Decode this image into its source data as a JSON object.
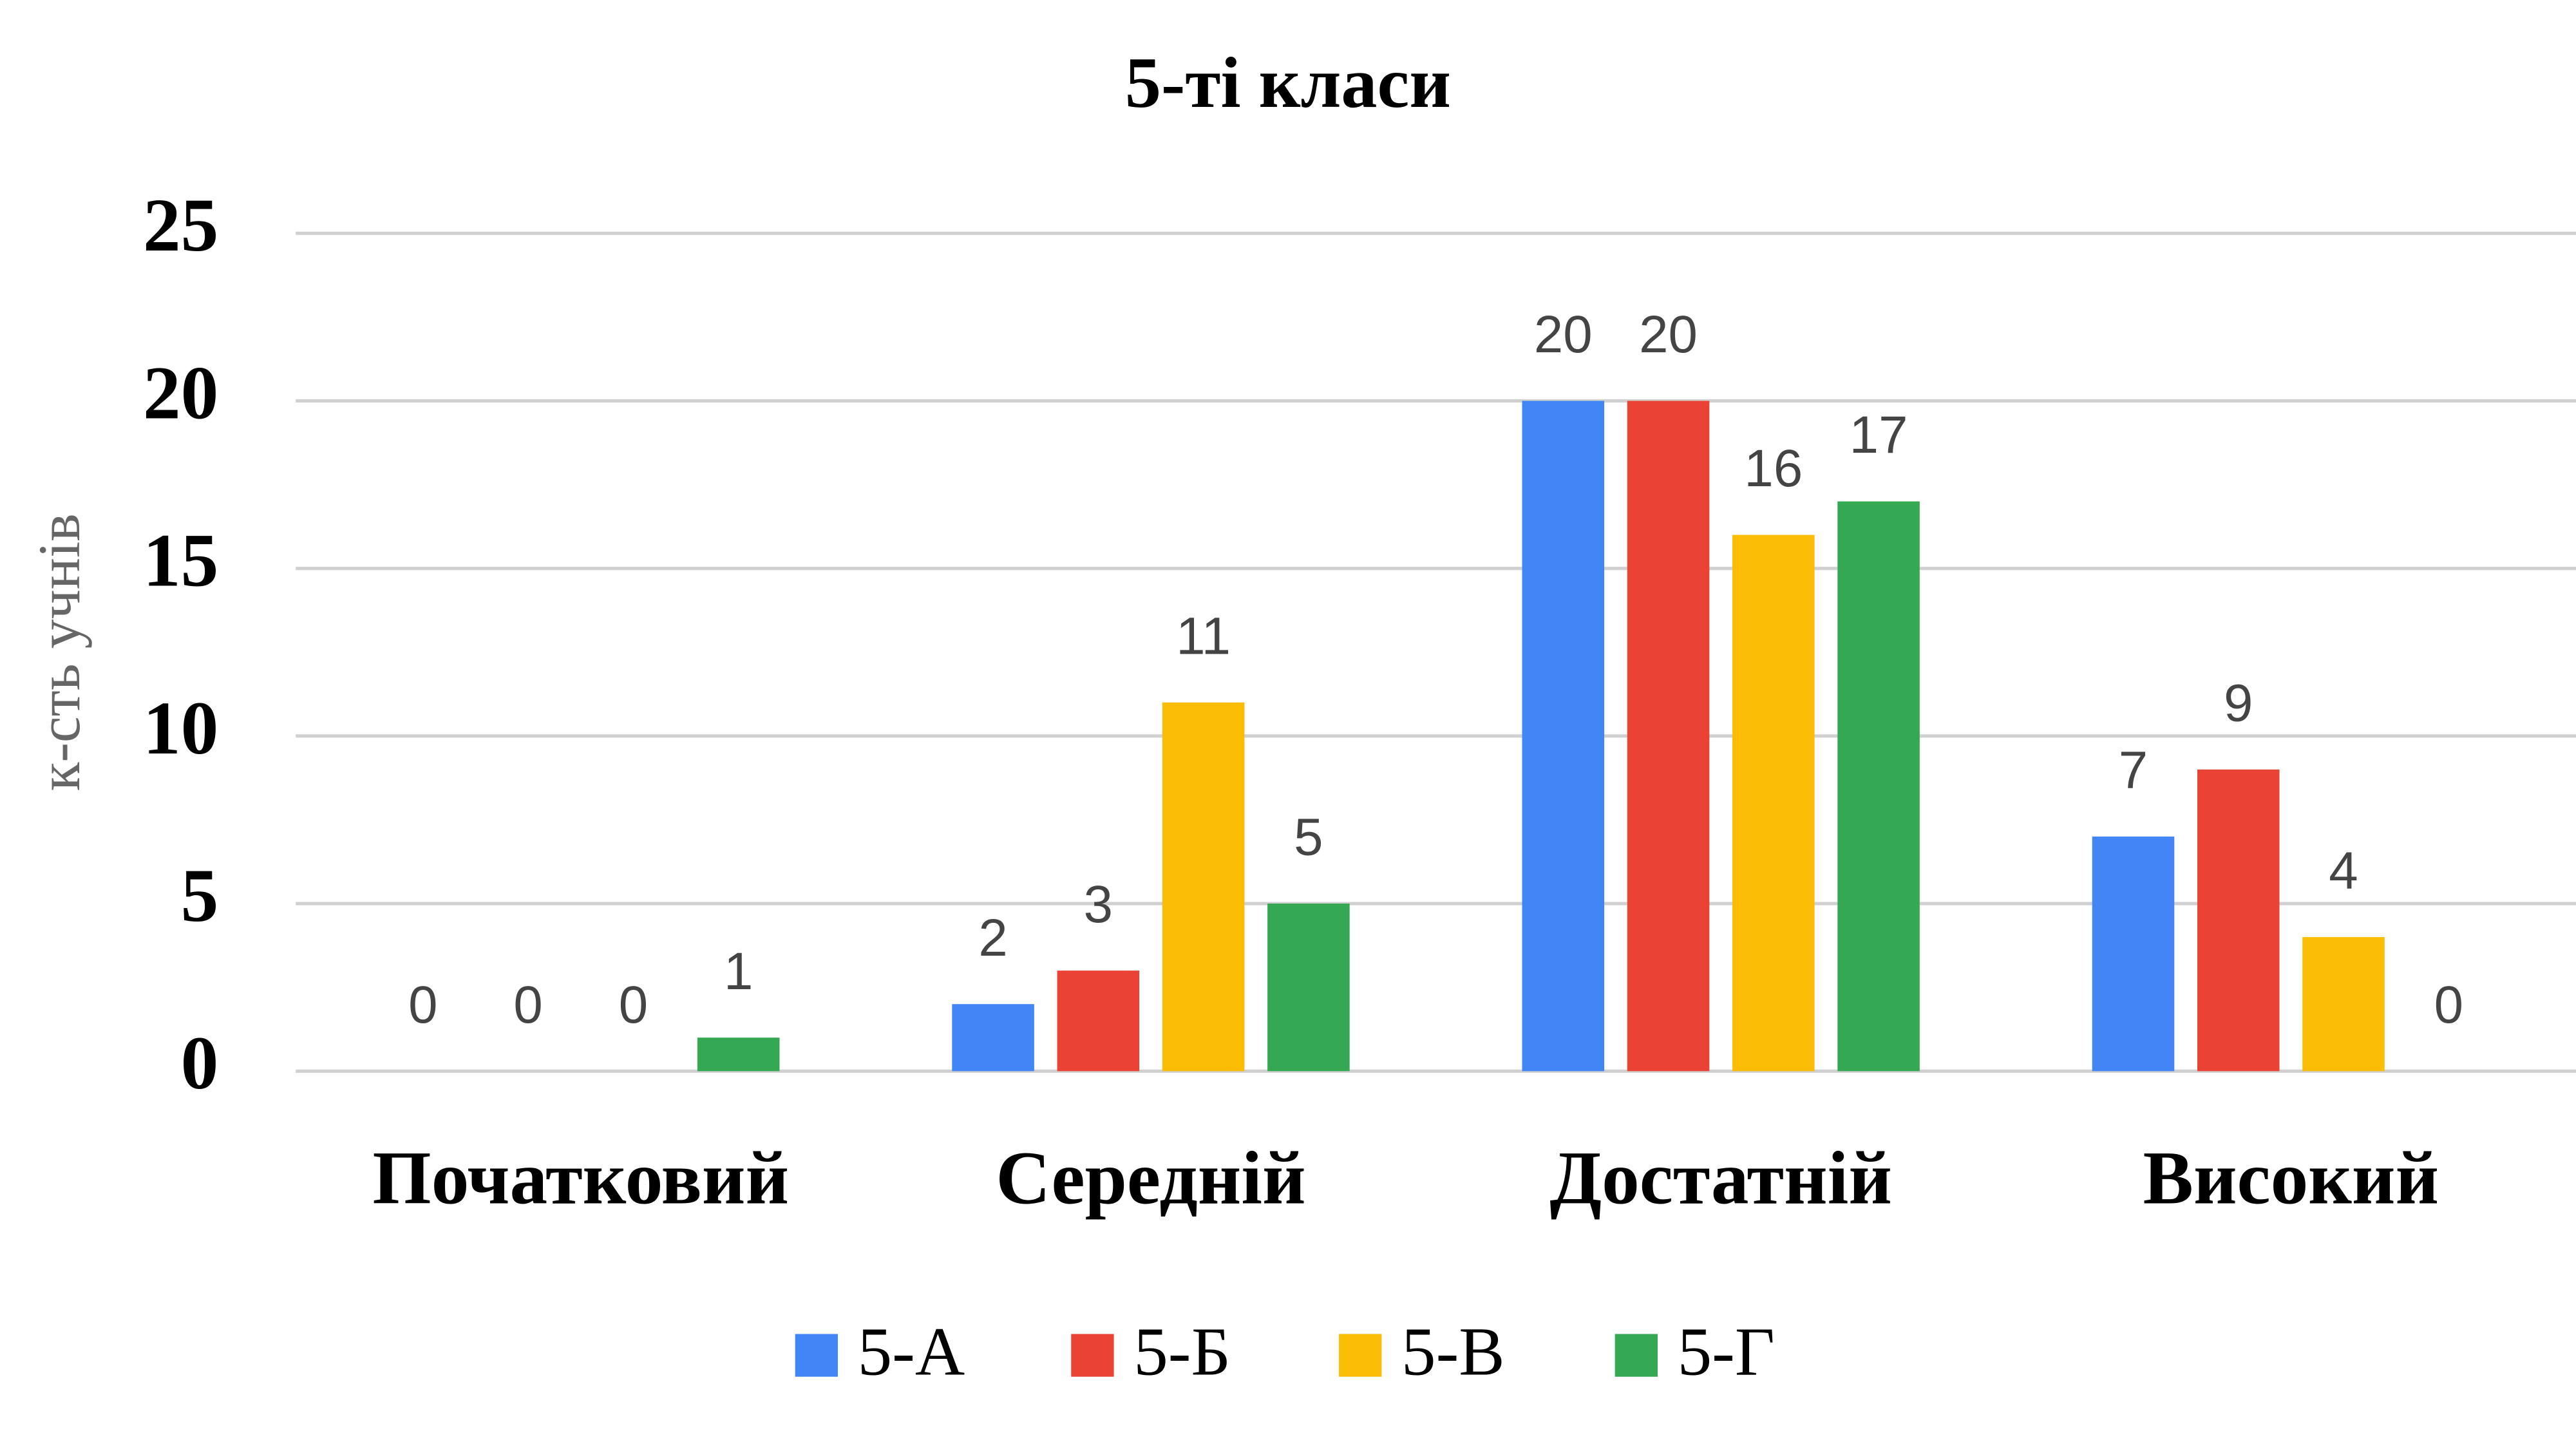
{
  "chart_data": {
    "type": "bar",
    "title": "5-ті класи",
    "y_label": "к-сть учнів",
    "categories": [
      "Початковий",
      "Середній",
      "Достатній",
      "Високий"
    ],
    "series": [
      {
        "name": "5-А",
        "color": "#4285f4",
        "values": [
          0,
          2,
          20,
          7
        ]
      },
      {
        "name": "5-Б",
        "color": "#ea4335",
        "values": [
          0,
          3,
          20,
          9
        ]
      },
      {
        "name": "5-В",
        "color": "#fbbc04",
        "values": [
          0,
          11,
          16,
          4
        ]
      },
      {
        "name": "5-Г",
        "color": "#34a853",
        "values": [
          1,
          5,
          17,
          0
        ]
      }
    ],
    "ylim": [
      0,
      25
    ],
    "yticks": [
      0,
      5,
      10,
      15,
      20,
      25
    ],
    "grid": true,
    "legend": "bottom"
  }
}
